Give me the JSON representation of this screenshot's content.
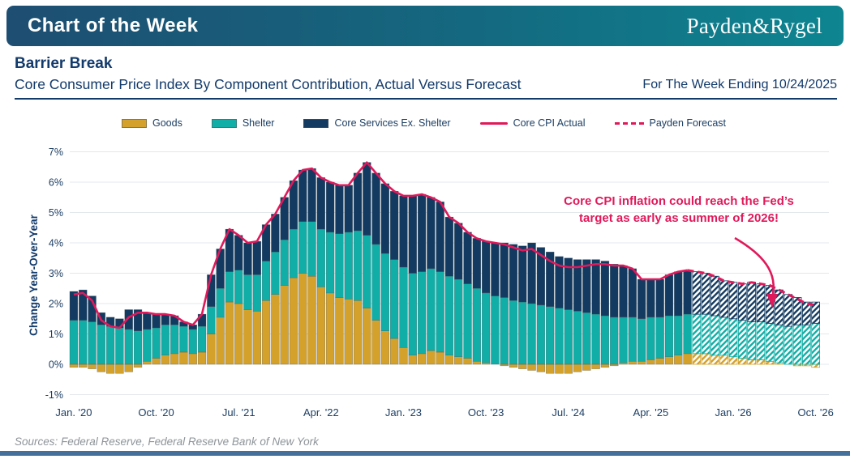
{
  "header": {
    "title": "Chart of the Week",
    "logo": "Payden&Rygel"
  },
  "titles": {
    "heading": "Barrier Break",
    "subtitle": "Core Consumer Price Index By Component Contribution, Actual Versus Forecast",
    "week_ending": "For The Week Ending 10/24/2025"
  },
  "legend": {
    "items": [
      {
        "label": "Goods",
        "type": "box",
        "color": "#D4A12B"
      },
      {
        "label": "Shelter",
        "type": "box",
        "color": "#10AEA6"
      },
      {
        "label": "Core Services Ex. Shelter",
        "type": "box",
        "color": "#133A60"
      },
      {
        "label": "Core CPI Actual",
        "type": "line",
        "color": "#E0195B"
      },
      {
        "label": "Payden Forecast",
        "type": "dash",
        "color": "#E0195B"
      }
    ]
  },
  "annotation": {
    "line1": "Core CPI inflation could reach the Fed’s",
    "line2": "target as early as summer of 2026!"
  },
  "footer": {
    "sources": "Sources: Federal Reserve, Federal Reserve Bank of New York"
  },
  "colors": {
    "goods": "#D4A12B",
    "shelter": "#10AEA6",
    "services": "#133A60",
    "line": "#E0195B",
    "gridline": "#E3E8EC",
    "axis_text": "#1C3E63",
    "navy_text": "#123A6B",
    "header_gradient_start": "#1E4E72",
    "header_gradient_end": "#0E8591",
    "sources_text": "#8E9499",
    "footer_bar": "#44709B",
    "hatch_background": "#FFFFFF"
  },
  "chart_data": {
    "type": "bar",
    "subtype": "stacked-bars-with-line",
    "title": "Core Consumer Price Index By Component Contribution, Actual Versus Forecast",
    "xlabel": "",
    "ylabel": "Change Year-Over-Year",
    "ylim": [
      -1,
      7
    ],
    "grid": true,
    "legend_position": "top",
    "y_tick_labels": [
      "7%",
      "6%",
      "5%",
      "4%",
      "3%",
      "2%",
      "1%",
      "0%",
      "-1%"
    ],
    "y_tick_values": [
      7,
      6,
      5,
      4,
      3,
      2,
      1,
      0,
      -1
    ],
    "x_ticks": [
      {
        "index": 0,
        "label": "Jan. '20"
      },
      {
        "index": 9,
        "label": "Oct. '20"
      },
      {
        "index": 18,
        "label": "Jul. '21"
      },
      {
        "index": 27,
        "label": "Apr. '22"
      },
      {
        "index": 36,
        "label": "Jan. '23"
      },
      {
        "index": 45,
        "label": "Oct. '23"
      },
      {
        "index": 54,
        "label": "Jul. '24"
      },
      {
        "index": 63,
        "label": "Apr. '25"
      },
      {
        "index": 72,
        "label": "Jan. '26"
      },
      {
        "index": 81,
        "label": "Oct. '26"
      }
    ],
    "months": [
      "2020-01",
      "2020-02",
      "2020-03",
      "2020-04",
      "2020-05",
      "2020-06",
      "2020-07",
      "2020-08",
      "2020-09",
      "2020-10",
      "2020-11",
      "2020-12",
      "2021-01",
      "2021-02",
      "2021-03",
      "2021-04",
      "2021-05",
      "2021-06",
      "2021-07",
      "2021-08",
      "2021-09",
      "2021-10",
      "2021-11",
      "2021-12",
      "2022-01",
      "2022-02",
      "2022-03",
      "2022-04",
      "2022-05",
      "2022-06",
      "2022-07",
      "2022-08",
      "2022-09",
      "2022-10",
      "2022-11",
      "2022-12",
      "2023-01",
      "2023-02",
      "2023-03",
      "2023-04",
      "2023-05",
      "2023-06",
      "2023-07",
      "2023-08",
      "2023-09",
      "2023-10",
      "2023-11",
      "2023-12",
      "2024-01",
      "2024-02",
      "2024-03",
      "2024-04",
      "2024-05",
      "2024-06",
      "2024-07",
      "2024-08",
      "2024-09",
      "2024-10",
      "2024-11",
      "2024-12",
      "2025-01",
      "2025-02",
      "2025-03",
      "2025-04",
      "2025-05",
      "2025-06",
      "2025-07",
      "2025-08",
      "2025-09",
      "2025-10",
      "2025-11",
      "2025-12",
      "2026-01",
      "2026-02",
      "2026-03",
      "2026-04",
      "2026-05",
      "2026-06",
      "2026-07",
      "2026-08",
      "2026-09",
      "2026-10"
    ],
    "forecast_start_index": 68,
    "series": [
      {
        "name": "Goods",
        "role": "bar",
        "values": [
          -0.1,
          -0.1,
          -0.15,
          -0.25,
          -0.3,
          -0.3,
          -0.25,
          -0.1,
          0.1,
          0.2,
          0.3,
          0.35,
          0.4,
          0.35,
          0.4,
          1.0,
          1.55,
          2.05,
          2.0,
          1.8,
          1.75,
          2.1,
          2.3,
          2.6,
          2.85,
          3.0,
          2.9,
          2.55,
          2.35,
          2.2,
          2.15,
          2.1,
          1.85,
          1.45,
          1.1,
          0.85,
          0.55,
          0.3,
          0.35,
          0.45,
          0.4,
          0.3,
          0.25,
          0.2,
          0.1,
          0.05,
          0.0,
          -0.05,
          -0.1,
          -0.15,
          -0.2,
          -0.25,
          -0.3,
          -0.3,
          -0.3,
          -0.25,
          -0.2,
          -0.15,
          -0.1,
          -0.05,
          0.05,
          0.1,
          0.1,
          0.15,
          0.2,
          0.25,
          0.3,
          0.35,
          0.35,
          0.35,
          0.3,
          0.3,
          0.25,
          0.2,
          0.15,
          0.15,
          0.1,
          0.05,
          0.0,
          -0.05,
          -0.05,
          -0.1
        ]
      },
      {
        "name": "Shelter",
        "role": "bar",
        "values": [
          1.45,
          1.45,
          1.4,
          1.3,
          1.25,
          1.2,
          1.15,
          1.1,
          1.05,
          1.0,
          1.0,
          0.95,
          0.85,
          0.8,
          0.85,
          0.9,
          0.95,
          1.0,
          1.1,
          1.15,
          1.2,
          1.3,
          1.4,
          1.5,
          1.6,
          1.7,
          1.8,
          1.9,
          2.0,
          2.1,
          2.2,
          2.3,
          2.4,
          2.5,
          2.55,
          2.6,
          2.65,
          2.7,
          2.7,
          2.7,
          2.65,
          2.6,
          2.55,
          2.45,
          2.4,
          2.3,
          2.25,
          2.2,
          2.1,
          2.05,
          2.0,
          1.95,
          1.9,
          1.85,
          1.8,
          1.75,
          1.7,
          1.65,
          1.6,
          1.55,
          1.5,
          1.45,
          1.4,
          1.4,
          1.35,
          1.35,
          1.3,
          1.3,
          1.3,
          1.3,
          1.3,
          1.25,
          1.25,
          1.25,
          1.25,
          1.25,
          1.25,
          1.25,
          1.25,
          1.3,
          1.3,
          1.35
        ]
      },
      {
        "name": "Core Services Ex. Shelter",
        "role": "bar",
        "values": [
          0.95,
          1.0,
          0.85,
          0.4,
          0.3,
          0.3,
          0.65,
          0.7,
          0.55,
          0.45,
          0.35,
          0.3,
          0.15,
          0.15,
          0.4,
          1.05,
          1.3,
          1.4,
          1.15,
          1.05,
          1.1,
          1.2,
          1.25,
          1.4,
          1.6,
          1.7,
          1.75,
          1.7,
          1.65,
          1.6,
          1.55,
          1.9,
          2.4,
          2.35,
          2.3,
          2.25,
          2.35,
          2.55,
          2.55,
          2.35,
          2.3,
          1.95,
          1.85,
          1.7,
          1.65,
          1.7,
          1.75,
          1.8,
          1.85,
          1.85,
          2.0,
          1.9,
          1.8,
          1.7,
          1.7,
          1.7,
          1.75,
          1.8,
          1.8,
          1.75,
          1.7,
          1.6,
          1.3,
          1.25,
          1.25,
          1.35,
          1.45,
          1.45,
          1.4,
          1.35,
          1.3,
          1.2,
          1.2,
          1.2,
          1.3,
          1.25,
          1.25,
          1.15,
          1.05,
          0.9,
          0.75,
          0.7
        ]
      },
      {
        "name": "Core CPI Actual / Payden Forecast",
        "role": "line",
        "values": [
          2.3,
          2.35,
          2.1,
          1.45,
          1.25,
          1.2,
          1.55,
          1.7,
          1.7,
          1.65,
          1.65,
          1.6,
          1.4,
          1.3,
          1.65,
          2.95,
          3.8,
          4.45,
          4.25,
          4.0,
          4.05,
          4.6,
          4.95,
          5.5,
          6.05,
          6.4,
          6.45,
          6.15,
          6.0,
          5.9,
          5.9,
          6.3,
          6.65,
          6.3,
          5.95,
          5.7,
          5.55,
          5.55,
          5.6,
          5.5,
          5.35,
          4.85,
          4.65,
          4.35,
          4.15,
          4.05,
          4.0,
          3.95,
          3.85,
          3.75,
          3.8,
          3.6,
          3.4,
          3.25,
          3.2,
          3.2,
          3.25,
          3.3,
          3.3,
          3.25,
          3.25,
          3.15,
          2.8,
          2.8,
          2.8,
          2.95,
          3.05,
          3.1,
          3.05,
          3.0,
          2.9,
          2.75,
          2.7,
          2.65,
          2.7,
          2.65,
          2.6,
          2.45,
          2.3,
          2.15,
          2.0,
          1.95
        ]
      }
    ]
  }
}
